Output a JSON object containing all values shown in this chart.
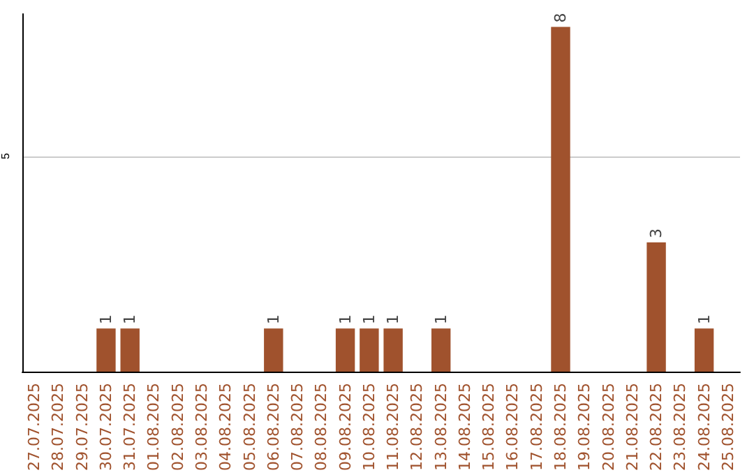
{
  "chart_data": {
    "type": "bar",
    "categories": [
      "27.07.2025",
      "28.07.2025",
      "29.07.2025",
      "30.07.2025",
      "31.07.2025",
      "01.08.2025",
      "02.08.2025",
      "03.08.2025",
      "04.08.2025",
      "05.08.2025",
      "06.08.2025",
      "07.08.2025",
      "08.08.2025",
      "09.08.2025",
      "10.08.2025",
      "11.08.2025",
      "12.08.2025",
      "13.08.2025",
      "14.08.2025",
      "15.08.2025",
      "16.08.2025",
      "17.08.2025",
      "18.08.2025",
      "19.08.2025",
      "20.08.2025",
      "21.08.2025",
      "22.08.2025",
      "23.08.2025",
      "24.08.2025",
      "25.08.2025"
    ],
    "values": [
      0,
      0,
      0,
      1,
      1,
      0,
      0,
      0,
      0,
      0,
      1,
      0,
      0,
      1,
      1,
      1,
      0,
      1,
      0,
      0,
      0,
      0,
      8,
      0,
      0,
      0,
      3,
      0,
      1,
      0
    ],
    "value_labels": [
      null,
      null,
      null,
      "1",
      "1",
      null,
      null,
      null,
      null,
      null,
      "1",
      null,
      null,
      "1",
      "1",
      "1",
      null,
      "1",
      null,
      null,
      null,
      null,
      "8",
      null,
      null,
      null,
      "3",
      null,
      "1",
      null
    ],
    "color": "#a0522d",
    "ylim": [
      0,
      8.3
    ],
    "yticks": [
      5
    ],
    "grid": "y"
  }
}
